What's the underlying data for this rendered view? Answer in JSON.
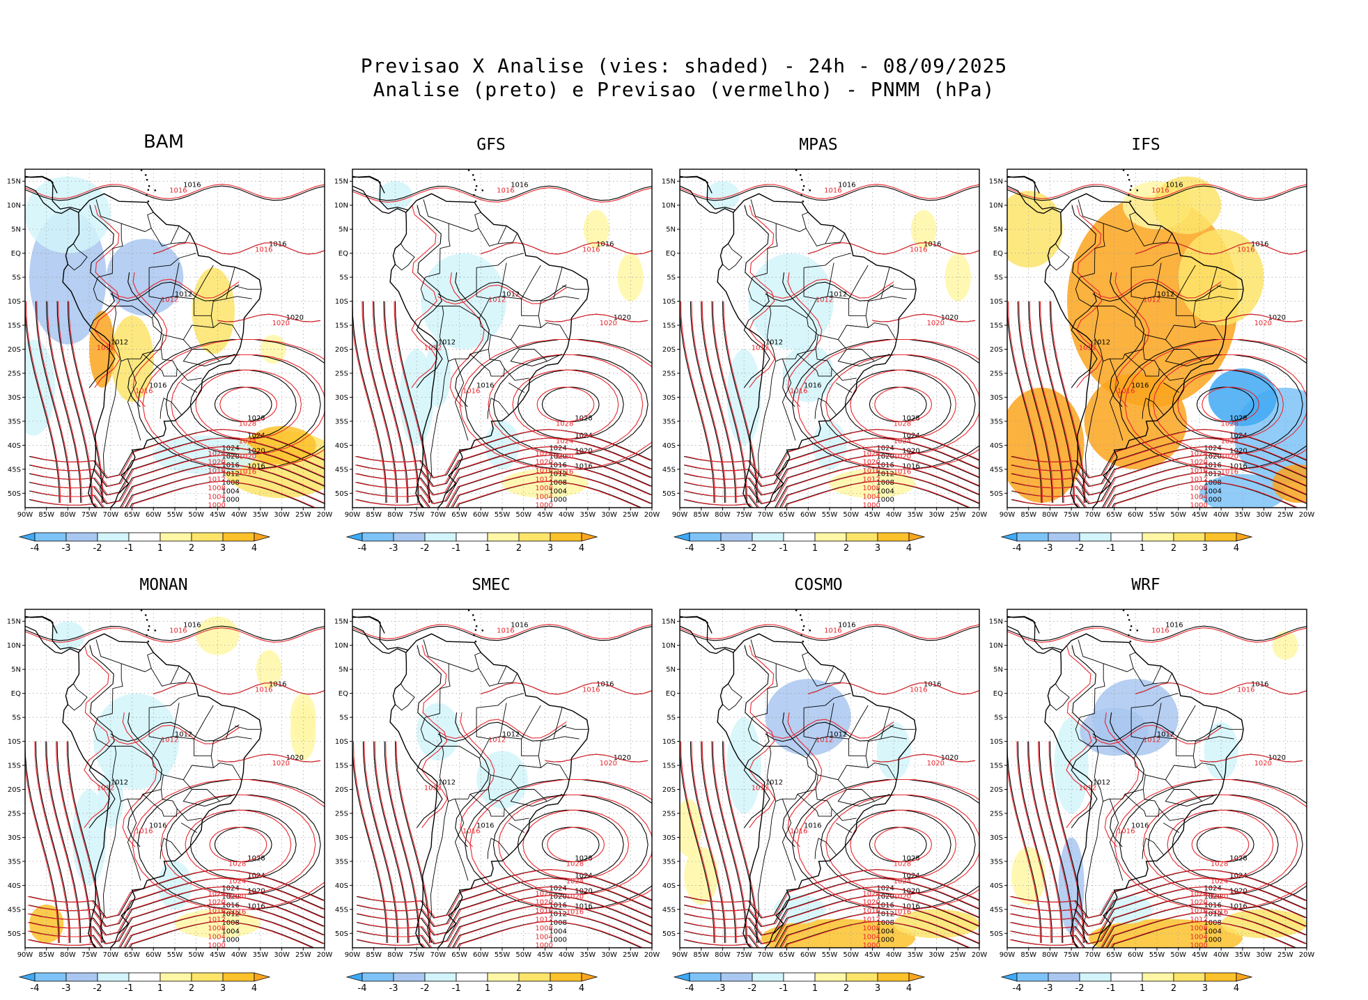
{
  "title": {
    "line1": "Previsao X Analise (vies: shaded) - 24h - 08/09/2025",
    "line2": "Analise (preto) e Previsao (vermelho) - PNMM (hPa)"
  },
  "axes": {
    "lat_labels": [
      "15N",
      "10N",
      "5N",
      "EQ",
      "5S",
      "10S",
      "15S",
      "20S",
      "25S",
      "30S",
      "35S",
      "40S",
      "45S",
      "50S"
    ],
    "lon_labels": [
      "90W",
      "85W",
      "80W",
      "75W",
      "70W",
      "65W",
      "60W",
      "55W",
      "50W",
      "45W",
      "40W",
      "35W",
      "30W",
      "25W",
      "20W"
    ]
  },
  "colorbar": {
    "labels": [
      "-4",
      "-3",
      "-2",
      "-1",
      "1",
      "2",
      "3",
      "4"
    ],
    "colors": [
      "#3fa9f5",
      "#7ec3f7",
      "#a9c7f0",
      "#d2f4fa",
      "#ffffff",
      "#fff7a6",
      "#fde46a",
      "#fdc22b",
      "#fba51d"
    ]
  },
  "contour_colors": {
    "analysis": "#000000",
    "forecast": "#e8242b"
  },
  "panels": [
    {
      "name": "BAM",
      "bias": "mixed"
    },
    {
      "name": "GFS",
      "bias": "weak-negative"
    },
    {
      "name": "MPAS",
      "bias": "weak-negative"
    },
    {
      "name": "IFS",
      "bias": "strong-positive"
    },
    {
      "name": "MONAN",
      "bias": "weak-negative"
    },
    {
      "name": "SMEC",
      "bias": "near-zero"
    },
    {
      "name": "COSMO",
      "bias": "negative"
    },
    {
      "name": "WRF",
      "bias": "negative"
    }
  ],
  "contour_labels": [
    "1004",
    "1008",
    "1012",
    "1016",
    "1020",
    "1024",
    "1028"
  ]
}
